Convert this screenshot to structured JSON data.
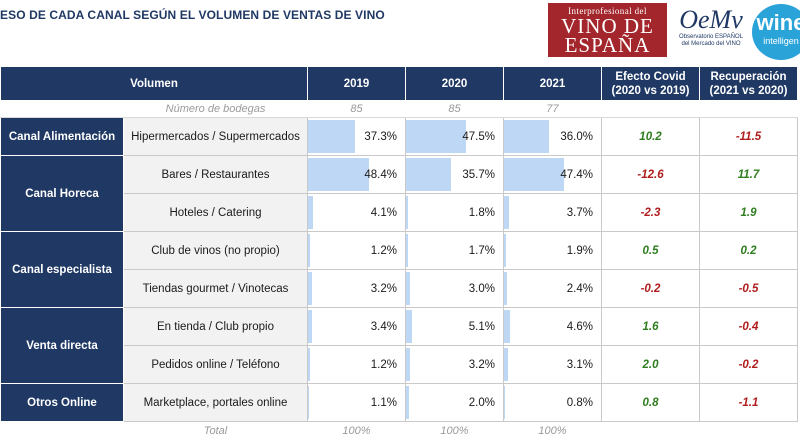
{
  "title": "ESO DE CADA CANAL SEGÚN EL VOLUMEN DE VENTAS DE VINO",
  "logos": {
    "ive_line1": "Interprofesional del",
    "ive_line2": "VINO DE",
    "ive_line3": "ESPAÑA",
    "oemv_big": "OeMv",
    "oemv_small": "Observatorio ESPAÑOL del Mercado del VINO",
    "wine_big": "wine",
    "wine_small": "intelligen"
  },
  "header": {
    "volumen": "Volumen",
    "y2019": "2019",
    "y2020": "2020",
    "y2021": "2021",
    "covid_1": "Efecto Covid",
    "covid_2": "(2020 vs 2019)",
    "recup_1": "Recuperación",
    "recup_2": "(2021 vs 2020)"
  },
  "bodegas": {
    "label": "Número de bodegas",
    "v2019": "85",
    "v2020": "85",
    "v2021": "77"
  },
  "categories": {
    "alimentacion": "Canal Alimentación",
    "horeca": "Canal Horeca",
    "especialista": "Canal especialista",
    "directa": "Venta directa",
    "online": "Otros Online"
  },
  "rows": [
    {
      "channel": "Hipermercados / Supermercados",
      "v2019": "37.3%",
      "v2020": "47.5%",
      "v2021": "36.0%",
      "covid": "10.2",
      "recup": "-11.5",
      "f2019": 0.373,
      "f2020": 0.475,
      "f2021": 0.36
    },
    {
      "channel": "Bares / Restaurantes",
      "v2019": "48.4%",
      "v2020": "35.7%",
      "v2021": "47.4%",
      "covid": "-12.6",
      "recup": "11.7",
      "f2019": 0.484,
      "f2020": 0.357,
      "f2021": 0.474
    },
    {
      "channel": "Hoteles / Catering",
      "v2019": "4.1%",
      "v2020": "1.8%",
      "v2021": "3.7%",
      "covid": "-2.3",
      "recup": "1.9",
      "f2019": 0.041,
      "f2020": 0.018,
      "f2021": 0.037
    },
    {
      "channel": "Club de vinos (no propio)",
      "v2019": "1.2%",
      "v2020": "1.7%",
      "v2021": "1.9%",
      "covid": "0.5",
      "recup": "0.2",
      "f2019": 0.012,
      "f2020": 0.017,
      "f2021": 0.019
    },
    {
      "channel": "Tiendas gourmet / Vinotecas",
      "v2019": "3.2%",
      "v2020": "3.0%",
      "v2021": "2.4%",
      "covid": "-0.2",
      "recup": "-0.5",
      "f2019": 0.032,
      "f2020": 0.03,
      "f2021": 0.024
    },
    {
      "channel": "En tienda / Club propio",
      "v2019": "3.4%",
      "v2020": "5.1%",
      "v2021": "4.6%",
      "covid": "1.6",
      "recup": "-0.4",
      "f2019": 0.034,
      "f2020": 0.051,
      "f2021": 0.046
    },
    {
      "channel": "Pedidos online / Teléfono",
      "v2019": "1.2%",
      "v2020": "3.2%",
      "v2021": "3.1%",
      "covid": "2.0",
      "recup": "-0.2",
      "f2019": 0.012,
      "f2020": 0.032,
      "f2021": 0.031
    },
    {
      "channel": "Marketplace, portales online",
      "v2019": "1.1%",
      "v2020": "2.0%",
      "v2021": "0.8%",
      "covid": "0.8",
      "recup": "-1.1",
      "f2019": 0.011,
      "f2020": 0.02,
      "f2021": 0.008
    }
  ],
  "total": {
    "label": "Total",
    "v2019": "100%",
    "v2020": "100%",
    "v2021": "100%"
  }
}
